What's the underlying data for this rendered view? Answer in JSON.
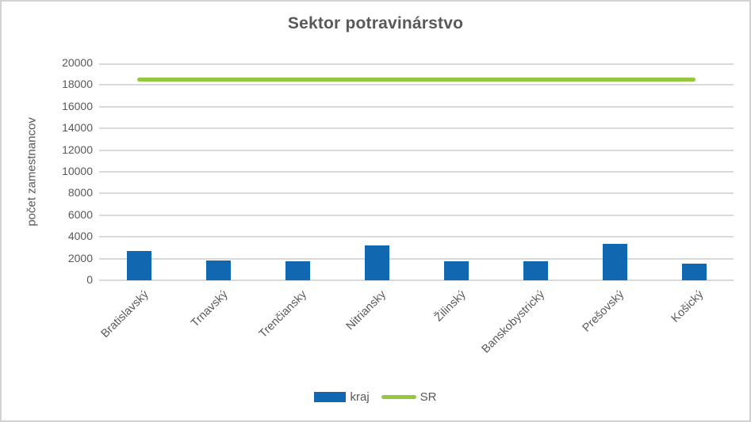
{
  "chart_data": {
    "type": "bar",
    "title": "Sektor potravinárstvo",
    "xlabel": "",
    "ylabel": "počet zamestnancov",
    "categories": [
      "Bratislavský",
      "Trnavský",
      "Trenčiansky",
      "Nitriansky",
      "Žilinský",
      "Banskobystrický",
      "Prešovský",
      "Košický"
    ],
    "series": [
      {
        "name": "kraj",
        "type": "bar",
        "color": "#1168b1",
        "values": [
          2700,
          1800,
          1750,
          3200,
          1750,
          1750,
          3350,
          1550
        ]
      },
      {
        "name": "SR",
        "type": "line",
        "color": "#94c83e",
        "value": 18500
      }
    ],
    "ylim": [
      0,
      20000
    ],
    "ytick_step": 2000,
    "ytick_labels": [
      "0",
      "2000",
      "4000",
      "6000",
      "8000",
      "10000",
      "12000",
      "14000",
      "16000",
      "18000",
      "20000"
    ],
    "grid": true,
    "legend_position": "bottom",
    "colors": {
      "text": "#595959",
      "gridline": "#d9d9d9",
      "bar": "#1168b1",
      "line": "#94c83e",
      "frame_border": "#d2d2d2"
    }
  }
}
